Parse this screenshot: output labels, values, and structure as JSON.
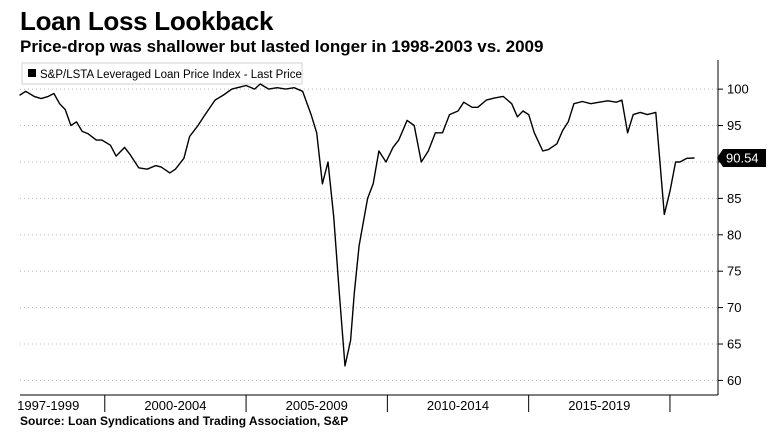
{
  "header": {
    "title": "Loan Loss Lookback",
    "subtitle": "Price-drop was shallower but lasted longer in 1998-2003 vs. 2009"
  },
  "footer": {
    "source": "Source: Loan Syndications and Trading Association, S&P"
  },
  "chart_data": {
    "type": "line",
    "title": "Loan Loss Lookback",
    "xlabel": "",
    "ylabel": "",
    "ylim": [
      58,
      104
    ],
    "y_ticks": [
      60,
      65,
      70,
      75,
      80,
      85,
      90,
      95,
      100
    ],
    "x_range": [
      1997,
      2021.7
    ],
    "x_tick_labels": [
      {
        "label": "1997-1999",
        "x": 1998.0
      },
      {
        "label": "2000-2004",
        "x": 2002.5
      },
      {
        "label": "2005-2009",
        "x": 2007.5
      },
      {
        "label": "2010-2014",
        "x": 2012.5
      },
      {
        "label": "2015-2019",
        "x": 2017.5
      }
    ],
    "x_separators": [
      2000,
      2005,
      2010,
      2015,
      2020
    ],
    "legend": "S&P/LSTA Leveraged Loan Price Index - Last Price",
    "last_value_label": "90.54",
    "line_color": "#000000",
    "series": [
      {
        "name": "S&P/LSTA Leveraged Loan Price Index - Last Price",
        "x": [
          1997.0,
          1997.2,
          1997.5,
          1997.75,
          1998.0,
          1998.2,
          1998.4,
          1998.6,
          1998.8,
          1999.0,
          1999.2,
          1999.4,
          1999.7,
          1999.9,
          2000.2,
          2000.4,
          2000.7,
          2000.9,
          2001.2,
          2001.5,
          2001.8,
          2002.0,
          2002.3,
          2002.5,
          2002.8,
          2003.0,
          2003.3,
          2003.5,
          2003.9,
          2004.2,
          2004.5,
          2004.8,
          2005.0,
          2005.3,
          2005.5,
          2005.8,
          2006.1,
          2006.4,
          2006.7,
          2007.0,
          2007.3,
          2007.5,
          2007.7,
          2007.9,
          2008.1,
          2008.3,
          2008.5,
          2008.7,
          2008.83,
          2009.0,
          2009.3,
          2009.5,
          2009.7,
          2009.95,
          2010.2,
          2010.4,
          2010.7,
          2010.95,
          2011.2,
          2011.45,
          2011.7,
          2011.95,
          2012.2,
          2012.5,
          2012.7,
          2013.0,
          2013.2,
          2013.5,
          2013.8,
          2014.1,
          2014.4,
          2014.6,
          2014.8,
          2015.0,
          2015.2,
          2015.5,
          2015.7,
          2016.0,
          2016.2,
          2016.4,
          2016.6,
          2016.9,
          2017.2,
          2017.5,
          2017.8,
          2018.1,
          2018.3,
          2018.5,
          2018.7,
          2018.95,
          2019.2,
          2019.5,
          2019.8,
          2020.0,
          2020.2,
          2020.35,
          2020.6,
          2020.85
        ],
        "values": [
          99.2,
          99.7,
          99.0,
          98.7,
          99.0,
          99.4,
          98.0,
          97.2,
          95.0,
          95.5,
          94.2,
          93.9,
          93.0,
          93.0,
          92.3,
          90.8,
          92.0,
          91.0,
          89.2,
          89.0,
          89.5,
          89.3,
          88.5,
          89.0,
          90.5,
          93.5,
          95.0,
          96.2,
          98.5,
          99.2,
          100.0,
          100.3,
          100.5,
          100.0,
          100.7,
          100.0,
          100.2,
          100.0,
          100.2,
          99.7,
          96.5,
          94.0,
          87.0,
          90.0,
          82.5,
          72.0,
          62.0,
          65.5,
          72.0,
          78.5,
          85.0,
          87.0,
          91.5,
          90.0,
          92.0,
          93.0,
          95.7,
          95.0,
          90.0,
          91.5,
          94.0,
          94.0,
          96.5,
          97.0,
          98.2,
          97.5,
          97.5,
          98.5,
          98.8,
          99.0,
          98.0,
          96.2,
          97.0,
          96.5,
          94.0,
          91.5,
          91.7,
          92.5,
          94.3,
          95.5,
          98.0,
          98.3,
          98.0,
          98.2,
          98.4,
          98.2,
          98.5,
          94.0,
          96.5,
          96.8,
          96.5,
          96.8,
          82.8,
          86.0,
          90.0,
          90.0,
          90.5,
          90.54
        ]
      }
    ]
  }
}
